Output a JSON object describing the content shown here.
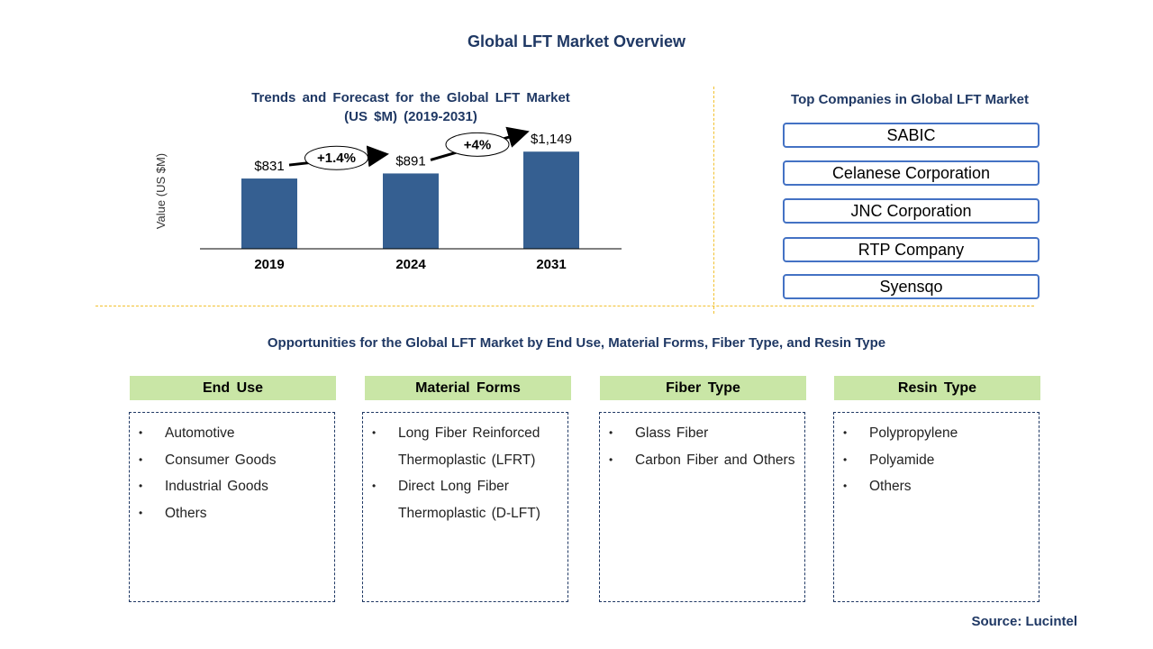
{
  "header": {
    "title": "Global LFT Market Overview"
  },
  "chart_data": {
    "type": "bar",
    "title": "Trends and Forecast for the Global LFT Market",
    "subtitle": "(US $M) (2019-2031)",
    "ylabel": "Value (US $M)",
    "xlabel": "",
    "categories": [
      "2019",
      "2024",
      "2031"
    ],
    "values": [
      831,
      891,
      1149
    ],
    "data_labels": [
      "$831",
      "$891",
      "$1,149"
    ],
    "ylim": [
      0,
      1450
    ],
    "bar_color": "#355f91",
    "growth_annotations": [
      {
        "from": "2019",
        "to": "2024",
        "label": "+1.4%"
      },
      {
        "from": "2024",
        "to": "2031",
        "label": "+4%"
      }
    ]
  },
  "companies": {
    "title": "Top Companies in Global LFT Market",
    "items": [
      "SABIC",
      "Celanese Corporation",
      "JNC Corporation",
      "RTP Company",
      "Syensqo"
    ]
  },
  "opportunities": {
    "title": "Opportunities for the Global LFT Market by End Use, Material Forms, Fiber Type, and Resin Type",
    "segments": [
      {
        "heading": "End Use",
        "items": [
          "Automotive",
          "Consumer Goods",
          "Industrial Goods",
          "Others"
        ]
      },
      {
        "heading": "Material Forms",
        "items": [
          "Long Fiber Reinforced Thermoplastic (LFRT)",
          "Direct Long Fiber Thermoplastic (D-LFT)"
        ]
      },
      {
        "heading": "Fiber Type",
        "items": [
          "Glass Fiber",
          "Carbon Fiber and Others"
        ]
      },
      {
        "heading": "Resin Type",
        "items": [
          "Polypropylene",
          "Polyamide",
          "Others"
        ]
      }
    ]
  },
  "footer": {
    "source": "Source: Lucintel"
  },
  "colors": {
    "title": "#1f3864",
    "bar": "#355f91",
    "segment_header": "#c9e6a6",
    "company_border": "#4472c4",
    "divider": "#f2c12e"
  }
}
